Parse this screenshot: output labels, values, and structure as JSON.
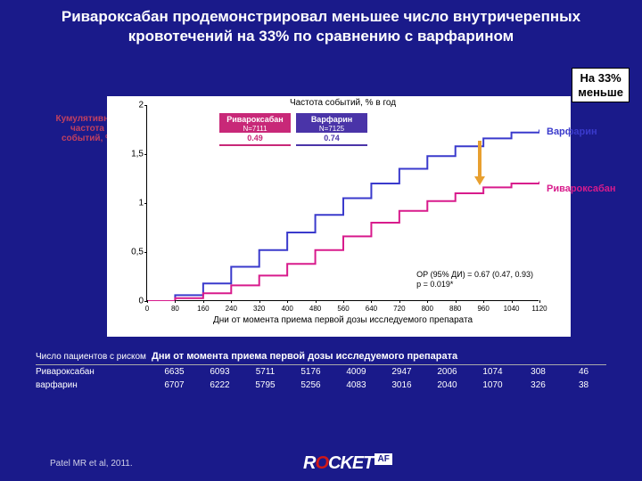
{
  "title": "Ривароксабан  продемонстрировал меньшее число внутричерепных кровотечений на 33% по сравнению с варфарином",
  "callout": {
    "line1": "На 33%",
    "line2": "меньше"
  },
  "ylabel_outer": "Кумулятивная частота событий, %",
  "chart": {
    "type": "line",
    "axis_title_y": "Частота событий, % в год",
    "axis_title_x": "Дни от момента приема первой дозы исследуемого препарата",
    "ylim": [
      0,
      2
    ],
    "yticks": [
      0,
      0.5,
      1,
      1.5,
      2
    ],
    "xlim": [
      0,
      1120
    ],
    "xtick_step": 80,
    "background": "#ffffff",
    "series": [
      {
        "name": "Варфарин",
        "color": "#3a3acc",
        "label_pos": {
          "x": 448,
          "y": 24
        },
        "points": [
          [
            0,
            0
          ],
          [
            80,
            0.06
          ],
          [
            160,
            0.18
          ],
          [
            240,
            0.35
          ],
          [
            320,
            0.52
          ],
          [
            400,
            0.7
          ],
          [
            480,
            0.88
          ],
          [
            560,
            1.05
          ],
          [
            640,
            1.2
          ],
          [
            720,
            1.35
          ],
          [
            800,
            1.48
          ],
          [
            880,
            1.58
          ],
          [
            960,
            1.66
          ],
          [
            1040,
            1.72
          ],
          [
            1120,
            1.75
          ]
        ]
      },
      {
        "name": "Ривароксабан",
        "color": "#d81b8c",
        "label_pos": {
          "x": 448,
          "y": 88
        },
        "points": [
          [
            0,
            0
          ],
          [
            80,
            0.03
          ],
          [
            160,
            0.08
          ],
          [
            240,
            0.16
          ],
          [
            320,
            0.26
          ],
          [
            400,
            0.38
          ],
          [
            480,
            0.52
          ],
          [
            560,
            0.66
          ],
          [
            640,
            0.8
          ],
          [
            720,
            0.92
          ],
          [
            800,
            1.02
          ],
          [
            880,
            1.1
          ],
          [
            960,
            1.16
          ],
          [
            1040,
            1.2
          ],
          [
            1120,
            1.22
          ]
        ]
      }
    ],
    "legend_boxes": [
      {
        "name": "Ривароксабан",
        "n": "N=7111",
        "val": "0.49",
        "bg": "#c82878",
        "color": "#fff",
        "valcolor": "#c82878"
      },
      {
        "name": "Варфарин",
        "n": "N=7125",
        "val": "0.74",
        "bg": "#4a34a8",
        "color": "#fff",
        "valcolor": "#4a34a8"
      }
    ],
    "hr_text1": "ОР (95% ДИ) = 0.67 (0.47, 0.93)",
    "hr_text2": "p = 0.019*",
    "arrow_color": "#e8a030"
  },
  "risk_table": {
    "header_left": "Число пациентов с риском",
    "header_right": "Дни от момента приема первой дозы исследуемого препарата",
    "rows": [
      {
        "label": "Ривароксабан",
        "cells": [
          "6635",
          "6093",
          "5711",
          "5176",
          "4009",
          "2947",
          "2006",
          "1074",
          "308",
          "46"
        ]
      },
      {
        "label": "варфарин",
        "cells": [
          "6707",
          "6222",
          "5795",
          "5256",
          "4083",
          "3016",
          "2040",
          "1070",
          "326",
          "38"
        ]
      }
    ]
  },
  "citation": "Patel MR et al, 2011.",
  "logo": {
    "text": "ROCKET",
    "suffix": "AF",
    "highlight_index": 1
  }
}
